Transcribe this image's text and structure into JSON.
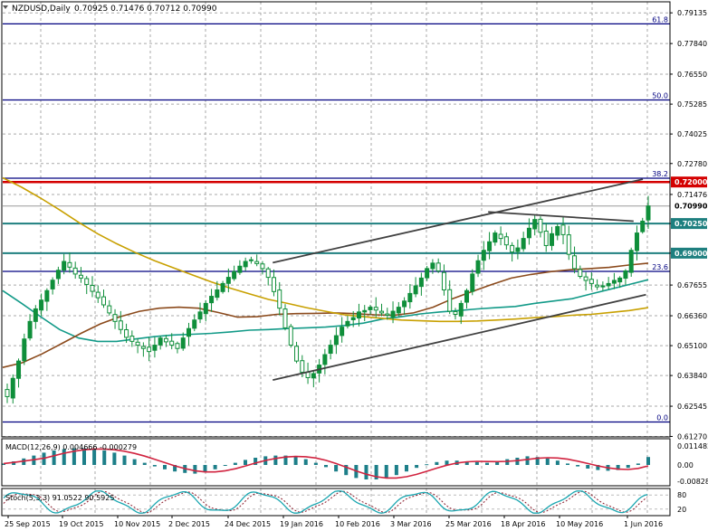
{
  "header": {
    "symbol_label": "NZDUSD,Daily",
    "ohlc_label": "0.70925 0.71476 0.70712 0.70990"
  },
  "colors": {
    "background": "#ffffff",
    "grid": "#a9a9a9",
    "frame": "#000000",
    "candle": "#0f8f3a",
    "level_teal": "#1e7f7f",
    "fib_navy": "#000080",
    "resistance_red": "#d40000",
    "trendline": "#404040",
    "ma_fast": "#129a88",
    "ma_mid": "#8b4a1c",
    "ma_slow": "#c8a000",
    "macd_hist": "#1d7f89",
    "macd_signal": "#d1233f",
    "stoch_main": "#1aa6b0",
    "stoch_signal": "#8b1b2c"
  },
  "chart_data": {
    "type": "candlestick",
    "symbol": "NZDUSD",
    "timeframe": "Daily",
    "ohlc": {
      "open": 0.70925,
      "high": 0.71476,
      "low": 0.70712,
      "close": 0.7099
    },
    "price_axis_ticks": [
      "0.79135",
      "0.77840",
      "0.76550",
      "0.75285",
      "0.74025",
      "0.72780",
      "0.71476",
      "0.70250",
      "0.69000",
      "0.67655",
      "0.66360",
      "0.65100",
      "0.63840",
      "0.62545",
      "0.61270"
    ],
    "price_axis_range": [
      0.6125,
      0.796
    ],
    "date_axis_ticks": [
      "25 Sep 2015",
      "19 Oct 2015",
      "10 Nov 2015",
      "2 Dec 2015",
      "24 Dec 2015",
      "19 Jan 2016",
      "10 Feb 2016",
      "3 Mar 2016",
      "25 Mar 2016",
      "18 Apr 2016",
      "10 May 2016",
      "1 Jun 2016"
    ],
    "current_price_label": "0.70990",
    "highlighted_levels": [
      {
        "label": "0.72000",
        "price": 0.72,
        "color": "#d40000"
      },
      {
        "label": "0.70250",
        "price": 0.7025,
        "color": "#1e7f7f"
      },
      {
        "label": "0.69000",
        "price": 0.69,
        "color": "#1e7f7f"
      }
    ],
    "fibonacci_levels": [
      {
        "label": "61.8",
        "price": 0.7867
      },
      {
        "label": "50.0",
        "price": 0.7546
      },
      {
        "label": "38.2",
        "price": 0.7216
      },
      {
        "label": "23.6",
        "price": 0.6823
      },
      {
        "label": "0.0",
        "price": 0.6188
      }
    ],
    "closes": [
      0.6295,
      0.6372,
      0.6445,
      0.6538,
      0.6612,
      0.6665,
      0.6702,
      0.6742,
      0.6786,
      0.6828,
      0.6865,
      0.6841,
      0.6812,
      0.6795,
      0.6768,
      0.6739,
      0.6712,
      0.6682,
      0.6648,
      0.6612,
      0.6578,
      0.6545,
      0.6528,
      0.6512,
      0.6498,
      0.6485,
      0.6512,
      0.6542,
      0.6526,
      0.6512,
      0.6498,
      0.6542,
      0.6582,
      0.6618,
      0.6652,
      0.6688,
      0.6718,
      0.6745,
      0.6772,
      0.6798,
      0.6822,
      0.6845,
      0.6865,
      0.6872,
      0.6856,
      0.6835,
      0.6798,
      0.6738,
      0.6668,
      0.6585,
      0.6512,
      0.6445,
      0.6398,
      0.6375,
      0.6392,
      0.6428,
      0.6472,
      0.6512,
      0.6552,
      0.6588,
      0.6612,
      0.6628,
      0.6652,
      0.6658,
      0.6672,
      0.666,
      0.6648,
      0.6638,
      0.6655,
      0.6672,
      0.6698,
      0.673,
      0.6762,
      0.6795,
      0.6835,
      0.6858,
      0.6825,
      0.6745,
      0.6655,
      0.6642,
      0.6688,
      0.6742,
      0.6812,
      0.6868,
      0.6912,
      0.6948,
      0.6985,
      0.6962,
      0.6935,
      0.6905,
      0.6922,
      0.6962,
      0.7005,
      0.7042,
      0.6988,
      0.6932,
      0.6982,
      0.7012,
      0.6978,
      0.6895,
      0.6835,
      0.6802,
      0.6785,
      0.6772,
      0.6758,
      0.6762,
      0.6772,
      0.6785,
      0.6795,
      0.6825,
      0.6912,
      0.6985,
      0.7035,
      0.7099
    ],
    "moving_averages": [
      {
        "name": "fast",
        "values": [
          0.6742,
          0.6688,
          0.6632,
          0.6578,
          0.6542,
          0.6528,
          0.6528,
          0.6538,
          0.6548,
          0.6555,
          0.6558,
          0.6562,
          0.6568,
          0.6575,
          0.6578,
          0.6582,
          0.6585,
          0.6588,
          0.6595,
          0.6605,
          0.6622,
          0.6632,
          0.6644,
          0.6652,
          0.6658,
          0.6665,
          0.667,
          0.6675,
          0.6688,
          0.6698,
          0.6708,
          0.6728,
          0.6748,
          0.6768,
          0.6788
        ]
      },
      {
        "name": "mid",
        "values": [
          0.6418,
          0.6438,
          0.6475,
          0.6518,
          0.6562,
          0.6602,
          0.6632,
          0.6655,
          0.6668,
          0.6672,
          0.6668,
          0.665,
          0.663,
          0.6632,
          0.6642,
          0.6645,
          0.6646,
          0.6648,
          0.6645,
          0.664,
          0.6638,
          0.6648,
          0.6672,
          0.6708,
          0.6738,
          0.6768,
          0.6795,
          0.681,
          0.6822,
          0.683,
          0.6835,
          0.684,
          0.685,
          0.6858
        ]
      },
      {
        "name": "slow",
        "values": [
          0.7218,
          0.7178,
          0.7132,
          0.7082,
          0.703,
          0.6982,
          0.694,
          0.6902,
          0.6868,
          0.6838,
          0.6808,
          0.6778,
          0.6752,
          0.6728,
          0.6705,
          0.6688,
          0.667,
          0.6655,
          0.664,
          0.6632,
          0.6625,
          0.6618,
          0.6615,
          0.6612,
          0.6612,
          0.6614,
          0.6618,
          0.6622,
          0.6628,
          0.6632,
          0.6638,
          0.6642,
          0.665,
          0.6658,
          0.667
        ]
      }
    ],
    "trendlines": [
      {
        "name": "upper-channel",
        "from": {
          "date": "14 Jan 2016",
          "price": 0.686
        },
        "to": {
          "date": "6 Jun 2016",
          "price": 0.7212
        }
      },
      {
        "name": "lower-channel",
        "from": {
          "date": "14 Jan 2016",
          "price": 0.6365
        },
        "to": {
          "date": "7 Jun 2016",
          "price": 0.6725
        }
      },
      {
        "name": "upper-wedge-line",
        "from": {
          "date": "11 Apr 2016",
          "price": 0.7074
        },
        "to": {
          "date": "3 Jun 2016",
          "price": 0.7035
        }
      }
    ],
    "macd": {
      "label": "MACD(12,26,9) 0.004666 -0.000279",
      "axis_ticks": [
        "0.011482",
        "0.00",
        "-0.008289"
      ],
      "histogram": [
        0.2,
        0.5,
        0.9,
        1.3,
        1.7,
        2.0,
        2.2,
        2.3,
        2.3,
        2.2,
        2.0,
        1.7,
        1.3,
        0.8,
        0.3,
        -0.2,
        -0.6,
        -0.9,
        -1.1,
        -1.2,
        -1.0,
        -0.6,
        -0.1,
        0.3,
        0.7,
        1.0,
        1.2,
        1.3,
        1.3,
        1.1,
        0.8,
        0.3,
        -0.3,
        -0.9,
        -1.4,
        -1.8,
        -2.0,
        -2.0,
        -1.8,
        -1.4,
        -0.9,
        -0.4,
        0.1,
        0.4,
        0.6,
        0.6,
        0.5,
        0.4,
        0.3,
        0.5,
        0.8,
        1.0,
        1.2,
        1.1,
        0.9,
        0.6,
        0.2,
        -0.2,
        -0.5,
        -0.7,
        -0.8,
        -0.7,
        -0.4,
        0.2,
        1.1
      ]
    },
    "stochastic": {
      "label": "Stoch(5,3,3) 91.0522 90.5925",
      "axis_ticks": [
        "80",
        "20"
      ]
    }
  },
  "sub_windows": {
    "macd_label": "MACD(12,26,9) 0.004666 -0.000279",
    "stoch_label": "Stoch(5,3,3) 91.0522 90.5925"
  }
}
